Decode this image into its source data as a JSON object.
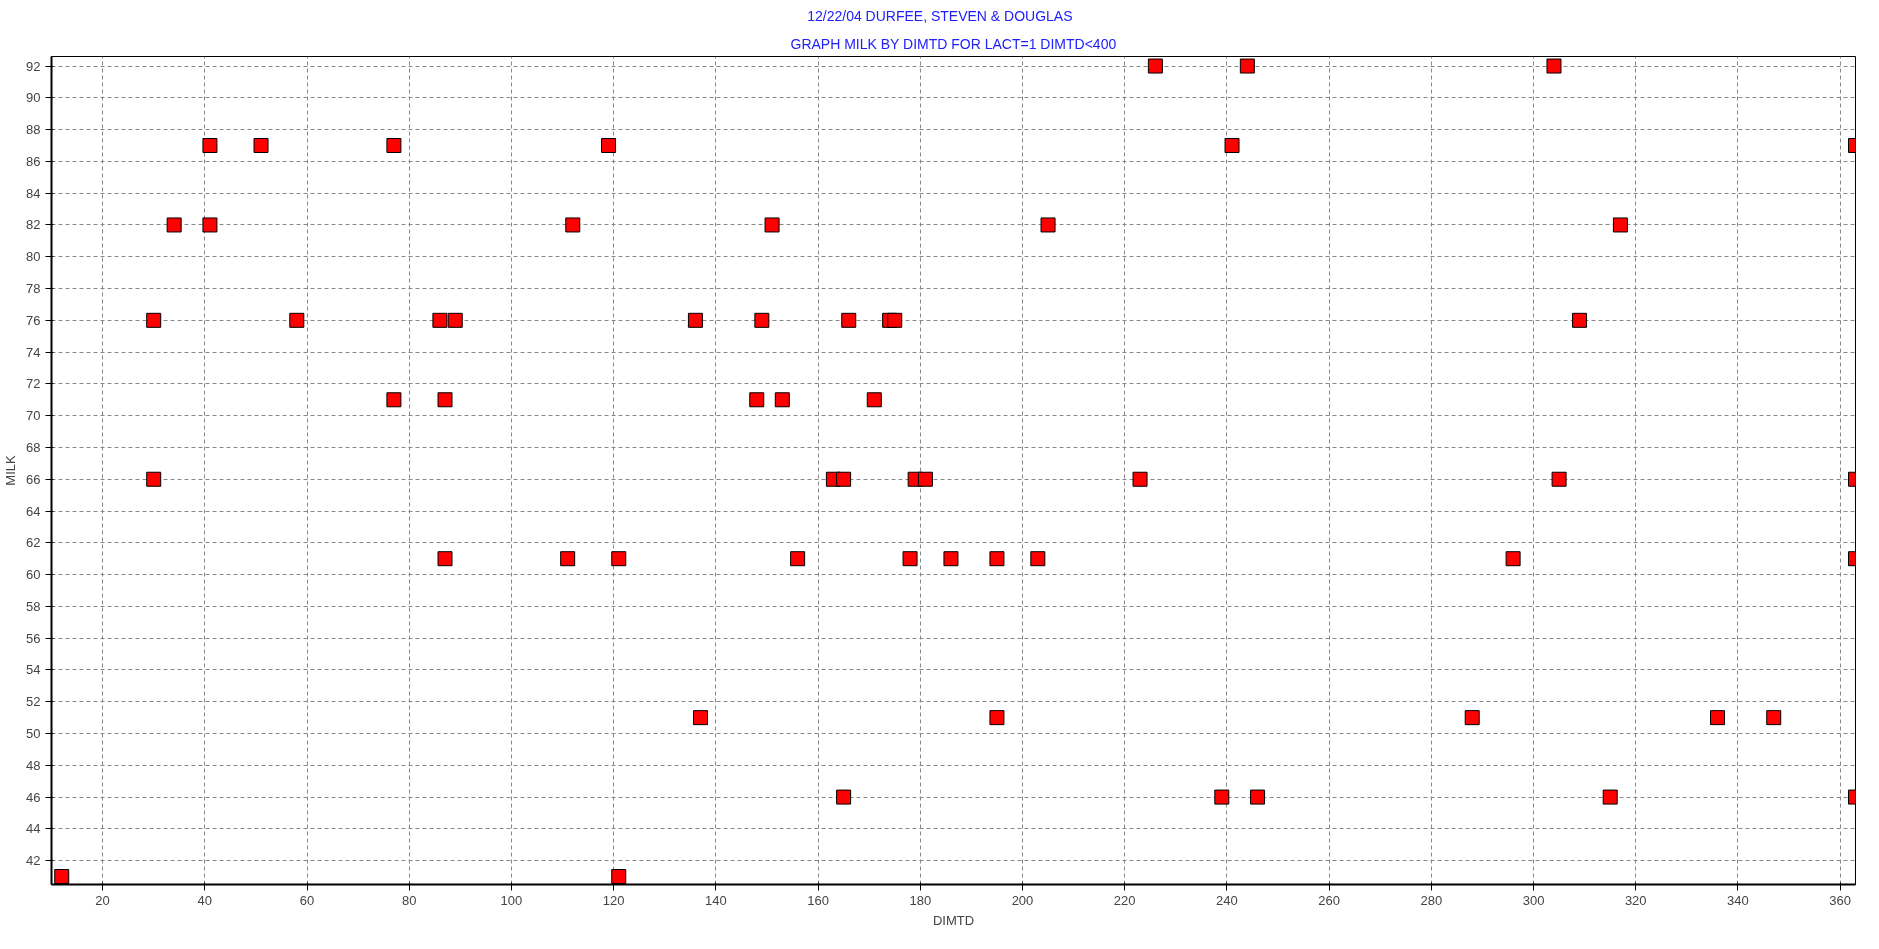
{
  "chart_data": {
    "type": "scatter",
    "title": "12/22/04        DURFEE, STEVEN & DOUGLAS",
    "subtitle": "GRAPH MILK BY DIMTD FOR LACT=1 DIMTD<400",
    "xlabel": "DIMTD",
    "ylabel": "MILK",
    "series": [
      {
        "color": "#ff0000",
        "x": [
          226,
          244,
          304,
          41,
          51,
          77,
          119,
          241,
          363,
          34,
          41,
          112,
          151,
          205,
          317,
          30,
          58,
          86,
          89,
          136,
          149,
          166,
          174,
          175,
          309,
          77,
          87,
          148,
          153,
          171,
          30,
          163,
          165,
          179,
          181,
          223,
          305,
          363,
          87,
          111,
          121,
          156,
          178,
          186,
          195,
          203,
          296,
          363,
          137,
          195,
          288,
          336,
          347,
          165,
          239,
          246,
          315,
          363,
          12,
          121
        ],
        "values": [
          92,
          92,
          92,
          87,
          87,
          87,
          87,
          87,
          87,
          82,
          82,
          82,
          82,
          82,
          82,
          76,
          76,
          76,
          76,
          76,
          76,
          76,
          76,
          76,
          76,
          71,
          71,
          71,
          71,
          71,
          66,
          66,
          66,
          66,
          66,
          66,
          66,
          66,
          61,
          61,
          61,
          61,
          61,
          61,
          61,
          61,
          61,
          61,
          51,
          51,
          51,
          51,
          51,
          46,
          46,
          46,
          46,
          46,
          41,
          41
        ]
      }
    ],
    "xlim": [
      10,
      363
    ],
    "ylim": [
      40.5,
      92.6
    ],
    "xticks": [
      20,
      40,
      60,
      80,
      100,
      120,
      140,
      160,
      180,
      200,
      220,
      240,
      260,
      280,
      300,
      320,
      340,
      360
    ],
    "yticks": [
      42,
      44,
      46,
      48,
      50,
      52,
      54,
      56,
      58,
      60,
      62,
      64,
      66,
      68,
      70,
      72,
      74,
      76,
      78,
      80,
      82,
      84,
      86,
      88,
      90,
      92
    ],
    "marker": "square",
    "grid": true
  }
}
